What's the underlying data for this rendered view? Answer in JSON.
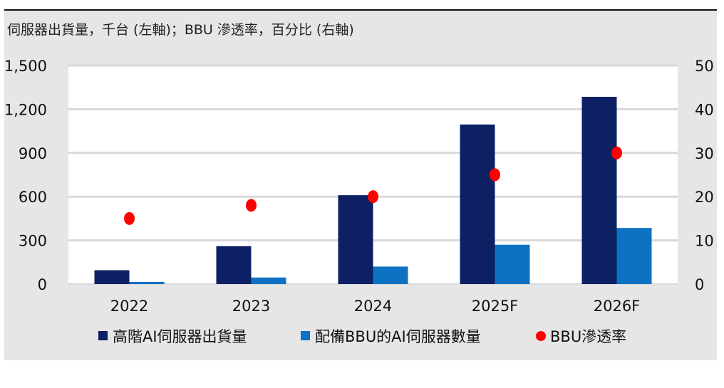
{
  "caption": "伺服器出貨量，千台 (左軸)；BBU 滲透率，百分比 (右軸)",
  "colors": {
    "panel_bg": "#e6e6e6",
    "plot_bg": "#ffffff",
    "grid": "#d9d9d9",
    "series_dark": "#0c2063",
    "series_blue": "#0e72c4",
    "series_red": "#ff0000"
  },
  "chart_data": {
    "type": "bar",
    "categories": [
      "2022",
      "2023",
      "2024",
      "2025F",
      "2026F"
    ],
    "series": [
      {
        "name": "高階AI伺服器出貨量",
        "type": "bar",
        "axis": "left",
        "color": "#0c2063",
        "values": [
          95,
          260,
          610,
          1095,
          1285
        ]
      },
      {
        "name": "配備BBU的AI伺服器數量",
        "type": "bar",
        "axis": "left",
        "color": "#0e72c4",
        "values": [
          15,
          45,
          120,
          270,
          385
        ]
      },
      {
        "name": "BBU滲透率",
        "type": "scatter",
        "axis": "right",
        "color": "#ff0000",
        "values": [
          15,
          18,
          20,
          25,
          30
        ]
      }
    ],
    "y_left": {
      "range": [
        0,
        1500
      ],
      "ticks": [
        0,
        300,
        600,
        900,
        1200,
        1500
      ],
      "tick_labels": [
        "0",
        "300",
        "600",
        "900",
        "1,200",
        "1,500"
      ]
    },
    "y_right": {
      "range": [
        0,
        50
      ],
      "ticks": [
        0,
        10,
        20,
        30,
        40,
        50
      ],
      "tick_labels": [
        "0",
        "10",
        "20",
        "30",
        "40",
        "50"
      ]
    },
    "grid": true,
    "legend_position": "bottom"
  }
}
